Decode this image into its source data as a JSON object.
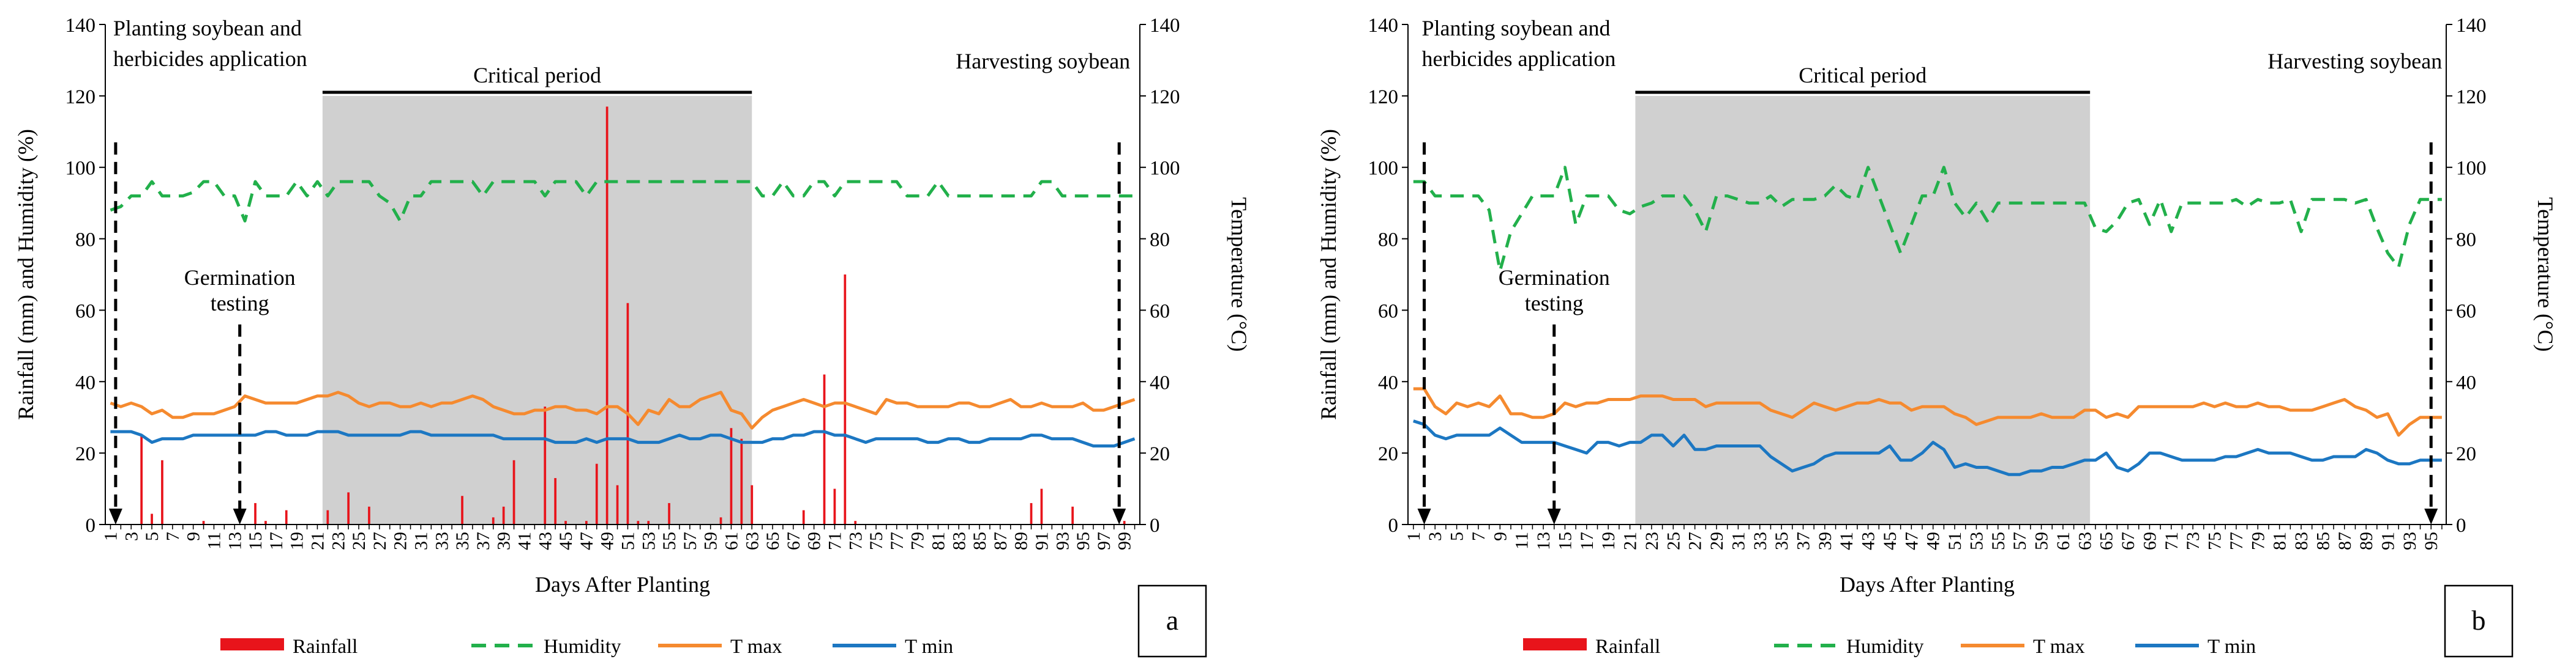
{
  "figure": {
    "legend_labels": {
      "rainfall": "Rainfall",
      "humidity": "Humidity",
      "tmax": "T max",
      "tmin": "T min"
    },
    "colors": {
      "rainfall": "#e8141b",
      "humidity": "#22b04b",
      "tmax": "#f58a2f",
      "tmin": "#1c77c2",
      "critical": "#d0d0d0",
      "axis": "#000000"
    }
  },
  "chart_data": [
    {
      "panel_label": "a",
      "type": "bar+line",
      "xlabel": "Days After Planting",
      "ylabel_left": "Rainfall (mm) and Humidity (%)",
      "ylabel_right": "Temperature (°C)",
      "ylim_left": [
        0,
        140
      ],
      "ylim_right": [
        0,
        140
      ],
      "yticks": [
        0,
        20,
        40,
        60,
        80,
        100,
        120,
        140
      ],
      "x_range": [
        1,
        100
      ],
      "xticks": [
        1,
        3,
        5,
        7,
        9,
        11,
        13,
        15,
        17,
        19,
        21,
        23,
        25,
        27,
        29,
        31,
        33,
        35,
        37,
        39,
        41,
        43,
        45,
        47,
        49,
        51,
        53,
        55,
        57,
        59,
        61,
        63,
        65,
        67,
        69,
        71,
        73,
        75,
        77,
        79,
        81,
        83,
        85,
        87,
        89,
        91,
        93,
        95,
        97,
        99
      ],
      "critical_period": {
        "label": "Critical period",
        "start": 21.5,
        "end": 63
      },
      "annotations": [
        {
          "text_lines": [
            "Planting soybean and",
            "herbicides application"
          ],
          "day": 1.5
        },
        {
          "text_lines": [
            "Germination",
            "testing"
          ],
          "day": 13.5
        },
        {
          "text_lines": [
            "Harvesting soybean"
          ],
          "day": 98.5
        }
      ],
      "series": [
        {
          "name": "Rainfall",
          "kind": "bar",
          "x": [
            4,
            5,
            6,
            10,
            15,
            16,
            18,
            22,
            24,
            26,
            35,
            38,
            39,
            40,
            43,
            44,
            45,
            47,
            48,
            49,
            50,
            51,
            52,
            53,
            55,
            60,
            61,
            62,
            63,
            68,
            70,
            71,
            72,
            73,
            90,
            91,
            94,
            99
          ],
          "values": [
            25,
            3,
            18,
            1,
            6,
            1,
            4,
            4,
            9,
            5,
            8,
            2,
            5,
            18,
            33,
            13,
            1,
            1,
            17,
            117,
            11,
            62,
            1,
            1,
            6,
            2,
            27,
            24,
            11,
            4,
            42,
            10,
            70,
            1,
            6,
            10,
            5,
            1
          ]
        },
        {
          "name": "Humidity",
          "kind": "line",
          "values": [
            88,
            89,
            92,
            92,
            96,
            92,
            92,
            92,
            93,
            96,
            96,
            92,
            92,
            85,
            96,
            92,
            92,
            92,
            96,
            92,
            96,
            92,
            96,
            96,
            96,
            96,
            92,
            90,
            85,
            92,
            92,
            96,
            96,
            96,
            96,
            96,
            92,
            96,
            96,
            96,
            96,
            96,
            92,
            96,
            96,
            96,
            92,
            96,
            96,
            96,
            96,
            96,
            96,
            96,
            96,
            96,
            96,
            96,
            96,
            96,
            96,
            96,
            96,
            92,
            92,
            96,
            92,
            92,
            96,
            96,
            92,
            96,
            96,
            96,
            96,
            96,
            96,
            92,
            92,
            92,
            96,
            92,
            92,
            92,
            92,
            92,
            92,
            92,
            92,
            92,
            96,
            96,
            92,
            92,
            92,
            92,
            92,
            92,
            92,
            92
          ]
        },
        {
          "name": "T max",
          "kind": "line",
          "values": [
            34,
            33,
            34,
            33,
            31,
            32,
            30,
            30,
            31,
            31,
            31,
            32,
            33,
            36,
            35,
            34,
            34,
            34,
            34,
            35,
            36,
            36,
            37,
            36,
            34,
            33,
            34,
            34,
            33,
            33,
            34,
            33,
            34,
            34,
            35,
            36,
            35,
            33,
            32,
            31,
            31,
            32,
            32,
            33,
            33,
            32,
            32,
            31,
            33,
            33,
            31,
            28,
            32,
            31,
            35,
            33,
            33,
            35,
            36,
            37,
            32,
            31,
            27,
            30,
            32,
            33,
            34,
            35,
            34,
            33,
            34,
            34,
            33,
            32,
            31,
            35,
            34,
            34,
            33,
            33,
            33,
            33,
            34,
            34,
            33,
            33,
            34,
            35,
            33,
            33,
            34,
            33,
            33,
            33,
            34,
            32,
            32,
            33,
            34,
            35
          ]
        },
        {
          "name": "T min",
          "kind": "line",
          "values": [
            26,
            26,
            26,
            25,
            23,
            24,
            24,
            24,
            25,
            25,
            25,
            25,
            25,
            25,
            25,
            26,
            26,
            25,
            25,
            25,
            26,
            26,
            26,
            25,
            25,
            25,
            25,
            25,
            25,
            26,
            26,
            25,
            25,
            25,
            25,
            25,
            25,
            25,
            24,
            24,
            24,
            24,
            24,
            23,
            23,
            23,
            24,
            23,
            24,
            24,
            24,
            23,
            23,
            23,
            24,
            25,
            24,
            24,
            25,
            25,
            24,
            23,
            23,
            23,
            24,
            24,
            25,
            25,
            26,
            26,
            25,
            25,
            24,
            23,
            24,
            24,
            24,
            24,
            24,
            23,
            23,
            24,
            24,
            23,
            23,
            24,
            24,
            24,
            24,
            25,
            25,
            24,
            24,
            24,
            23,
            22,
            22,
            22,
            23,
            24
          ]
        }
      ]
    },
    {
      "panel_label": "b",
      "type": "bar+line",
      "xlabel": "Days After Planting",
      "ylabel_left": "Rainfall (mm) and Humidity (%)",
      "ylabel_right": "Temperature (°C)",
      "ylim_left": [
        0,
        140
      ],
      "ylim_right": [
        0,
        140
      ],
      "yticks": [
        0,
        20,
        40,
        60,
        80,
        100,
        120,
        140
      ],
      "x_range": [
        1,
        96
      ],
      "xticks": [
        1,
        3,
        5,
        7,
        9,
        11,
        13,
        15,
        17,
        19,
        21,
        23,
        25,
        27,
        29,
        31,
        33,
        35,
        37,
        39,
        41,
        43,
        45,
        47,
        49,
        51,
        53,
        55,
        57,
        59,
        61,
        63,
        65,
        67,
        69,
        71,
        73,
        75,
        77,
        79,
        81,
        83,
        85,
        87,
        89,
        91,
        93,
        95
      ],
      "critical_period": {
        "label": "Critical period",
        "start": 21.5,
        "end": 63.5
      },
      "annotations": [
        {
          "text_lines": [
            "Planting soybean and",
            "herbicides application"
          ],
          "day": 2
        },
        {
          "text_lines": [
            "Germination",
            "testing"
          ],
          "day": 14
        },
        {
          "text_lines": [
            "Harvesting soybean"
          ],
          "day": 95
        }
      ],
      "series": [
        {
          "name": "Rainfall",
          "kind": "bar",
          "x": [],
          "values": []
        },
        {
          "name": "Humidity",
          "kind": "line",
          "values": [
            96,
            96,
            92,
            92,
            92,
            92,
            92,
            88,
            71,
            82,
            87,
            92,
            92,
            92,
            100,
            84,
            92,
            92,
            92,
            88,
            87,
            89,
            90,
            92,
            92,
            92,
            88,
            82,
            92,
            92,
            91,
            90,
            90,
            92,
            89,
            91,
            91,
            91,
            92,
            95,
            92,
            91,
            100,
            92,
            84,
            76,
            84,
            92,
            92,
            100,
            90,
            86,
            90,
            85,
            90,
            90,
            90,
            90,
            90,
            90,
            90,
            90,
            90,
            83,
            82,
            85,
            90,
            91,
            84,
            91,
            82,
            90,
            90,
            90,
            90,
            90,
            91,
            89,
            91,
            90,
            90,
            91,
            82,
            91,
            91,
            91,
            91,
            90,
            91,
            83,
            76,
            72,
            84,
            91,
            91,
            91
          ]
        },
        {
          "name": "T max",
          "kind": "line",
          "values": [
            38,
            38,
            33,
            31,
            34,
            33,
            34,
            33,
            36,
            31,
            31,
            30,
            30,
            31,
            34,
            33,
            34,
            34,
            35,
            35,
            35,
            36,
            36,
            36,
            35,
            35,
            35,
            33,
            34,
            34,
            34,
            34,
            34,
            32,
            31,
            30,
            32,
            34,
            33,
            32,
            33,
            34,
            34,
            35,
            34,
            34,
            32,
            33,
            33,
            33,
            31,
            30,
            28,
            29,
            30,
            30,
            30,
            30,
            31,
            30,
            30,
            30,
            32,
            32,
            30,
            31,
            30,
            33,
            33,
            33,
            33,
            33,
            33,
            34,
            33,
            34,
            33,
            33,
            34,
            33,
            33,
            32,
            32,
            32,
            33,
            34,
            35,
            33,
            32,
            30,
            31,
            25,
            28,
            30,
            30,
            30
          ]
        },
        {
          "name": "T min",
          "kind": "line",
          "values": [
            29,
            28,
            25,
            24,
            25,
            25,
            25,
            25,
            27,
            25,
            23,
            23,
            23,
            23,
            22,
            21,
            20,
            23,
            23,
            22,
            23,
            23,
            25,
            25,
            22,
            25,
            21,
            21,
            22,
            22,
            22,
            22,
            22,
            19,
            17,
            15,
            16,
            17,
            19,
            20,
            20,
            20,
            20,
            20,
            22,
            18,
            18,
            20,
            23,
            21,
            16,
            17,
            16,
            16,
            15,
            14,
            14,
            15,
            15,
            16,
            16,
            17,
            18,
            18,
            20,
            16,
            15,
            17,
            20,
            20,
            19,
            18,
            18,
            18,
            18,
            19,
            19,
            20,
            21,
            20,
            20,
            20,
            19,
            18,
            18,
            19,
            19,
            19,
            21,
            20,
            18,
            17,
            17,
            18,
            18,
            18
          ]
        }
      ]
    }
  ]
}
